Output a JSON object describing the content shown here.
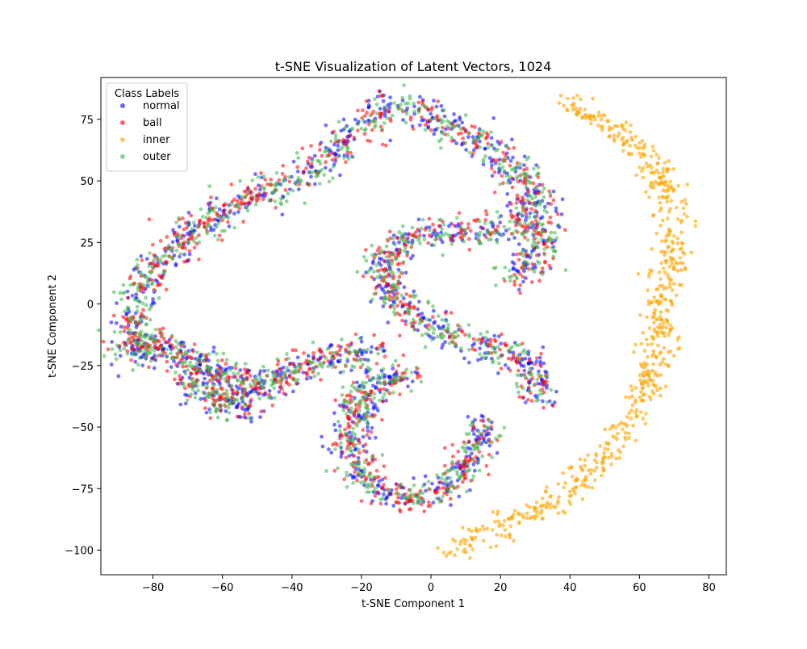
{
  "chart_data": {
    "type": "scatter",
    "title": "t-SNE Visualization of Latent Vectors, 1024",
    "xlabel": "t-SNE Component 1",
    "ylabel": "t-SNE Component 2",
    "xlim": [
      -95,
      85
    ],
    "ylim": [
      -110,
      92
    ],
    "x_ticks": [
      -80,
      -60,
      -40,
      -20,
      0,
      20,
      40,
      60,
      80
    ],
    "x_tick_labels": [
      "−80",
      "−60",
      "−40",
      "−20",
      "0",
      "20",
      "40",
      "60",
      "80"
    ],
    "y_ticks": [
      -100,
      -75,
      -50,
      -25,
      0,
      25,
      50,
      75
    ],
    "y_tick_labels": [
      "−100",
      "−75",
      "−50",
      "−25",
      "0",
      "25",
      "50",
      "75"
    ],
    "grid": false,
    "legend": {
      "title": "Class Labels",
      "placement": "top-left",
      "entries": [
        "normal",
        "ball",
        "inner",
        "outer"
      ]
    },
    "series": [
      {
        "name": "normal",
        "color": "#0000ff",
        "points": "shared-clusters"
      },
      {
        "name": "ball",
        "color": "#ff0000",
        "points": "shared-clusters"
      },
      {
        "name": "inner",
        "color": "#ffa500",
        "points": "right-arc"
      },
      {
        "name": "outer",
        "color": "#3cb44b",
        "points": "shared-clusters"
      }
    ],
    "cluster_paths": {
      "upper_arc": [
        [
          -86,
          -22
        ],
        [
          -86,
          -10
        ],
        [
          -84,
          5
        ],
        [
          -78,
          18
        ],
        [
          -70,
          28
        ],
        [
          -62,
          35
        ],
        [
          -55,
          42
        ],
        [
          -45,
          47
        ],
        [
          -35,
          52
        ],
        [
          -30,
          60
        ],
        [
          -25,
          65
        ],
        [
          -18,
          73
        ],
        [
          -12,
          80
        ],
        [
          -5,
          80
        ],
        [
          5,
          72
        ],
        [
          12,
          68
        ],
        [
          20,
          60
        ],
        [
          27,
          48
        ],
        [
          32,
          35
        ],
        [
          30,
          20
        ],
        [
          25,
          10
        ]
      ],
      "upper_inner_arm": [
        [
          28,
          38
        ],
        [
          20,
          30
        ],
        [
          10,
          30
        ],
        [
          0,
          28
        ],
        [
          -10,
          25
        ],
        [
          -15,
          15
        ],
        [
          -12,
          5
        ],
        [
          -8,
          -2
        ],
        [
          -2,
          -7
        ],
        [
          5,
          -12
        ],
        [
          15,
          -17
        ],
        [
          25,
          -22
        ],
        [
          30,
          -30
        ],
        [
          30,
          -38
        ]
      ],
      "left_lower_arm": [
        [
          -85,
          -22
        ],
        [
          -80,
          -15
        ],
        [
          -72,
          -22
        ],
        [
          -65,
          -25
        ],
        [
          -58,
          -30
        ],
        [
          -50,
          -35
        ],
        [
          -40,
          -27
        ],
        [
          -30,
          -22
        ],
        [
          -22,
          -20
        ],
        [
          -15,
          -18
        ]
      ],
      "left_lower_arm_bottom": [
        [
          -70,
          -30
        ],
        [
          -62,
          -40
        ],
        [
          -55,
          -42
        ],
        [
          -50,
          -40
        ]
      ],
      "bottom_hook": [
        [
          -5,
          -30
        ],
        [
          -15,
          -30
        ],
        [
          -20,
          -40
        ],
        [
          -23,
          -55
        ],
        [
          -20,
          -70
        ],
        [
          -12,
          -77
        ],
        [
          -3,
          -79
        ],
        [
          5,
          -74
        ],
        [
          10,
          -65
        ],
        [
          14,
          -55
        ],
        [
          14,
          -48
        ]
      ],
      "right_arc": [
        [
          37,
          82
        ],
        [
          45,
          78
        ],
        [
          55,
          68
        ],
        [
          62,
          60
        ],
        [
          67,
          50
        ],
        [
          70,
          35
        ],
        [
          69,
          20
        ],
        [
          67,
          5
        ],
        [
          66,
          -10
        ],
        [
          64,
          -25
        ],
        [
          60,
          -40
        ],
        [
          55,
          -55
        ],
        [
          48,
          -65
        ],
        [
          40,
          -75
        ],
        [
          33,
          -82
        ],
        [
          22,
          -90
        ],
        [
          12,
          -96
        ],
        [
          4,
          -101
        ]
      ]
    }
  }
}
